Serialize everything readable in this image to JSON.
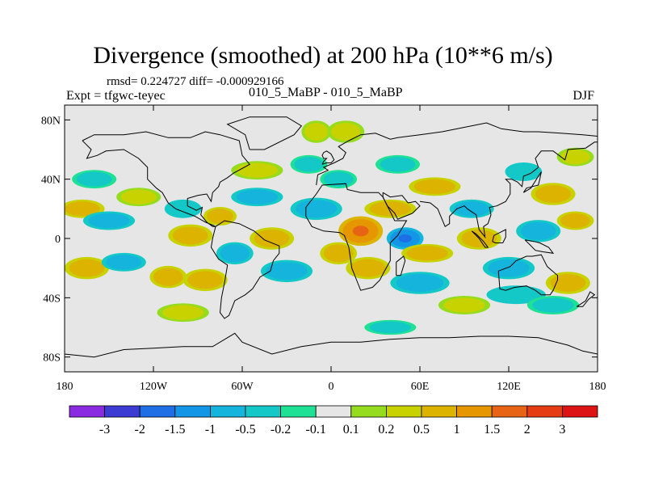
{
  "chart_data": {
    "type": "heatmap",
    "title": "Divergence (smoothed) at 200 hPa (10**6 m/s)",
    "stats_line": "rmsd= 0.224727 diff= -0.000929166",
    "expt_label": "Expt = tfgwc-teyec",
    "runs_label": "010_5_MaBP - 010_5_MaBP",
    "season": "DJF",
    "x_ticks": [
      "180",
      "120W",
      "60W",
      "0",
      "60E",
      "120E",
      "180"
    ],
    "x_tick_values": [
      -180,
      -120,
      -60,
      0,
      60,
      120,
      180
    ],
    "y_ticks": [
      "80N",
      "40N",
      "0",
      "40S",
      "80S"
    ],
    "y_tick_values": [
      80,
      40,
      0,
      -40,
      -80
    ],
    "xlim": [
      -180,
      180
    ],
    "ylim": [
      -90,
      90
    ],
    "colorbar_labels": [
      "-3",
      "-2",
      "-1.5",
      "-1",
      "-0.5",
      "-0.2",
      "-0.1",
      "0.1",
      "0.2",
      "0.5",
      "1",
      "1.5",
      "2",
      "3"
    ],
    "colorbar_levels": [
      -3,
      -2,
      -1.5,
      -1,
      -0.5,
      -0.2,
      -0.1,
      0.1,
      0.2,
      0.5,
      1,
      1.5,
      2,
      3
    ],
    "colorbar_colors": [
      "#8a2be2",
      "#3c3cd2",
      "#1e6ee6",
      "#1496e6",
      "#14b4dc",
      "#14c8c8",
      "#1ee196",
      "#e6e6e6",
      "#96dc1e",
      "#c8d200",
      "#dcb400",
      "#e69600",
      "#e66414",
      "#e63c14",
      "#dc1414"
    ],
    "field_blobs": [
      {
        "lon": -168,
        "lat": 20,
        "rlon": 12,
        "rlat": 5,
        "v": 0.6
      },
      {
        "lon": -150,
        "lat": 12,
        "rlon": 14,
        "rlat": 5,
        "v": -0.6
      },
      {
        "lon": -165,
        "lat": -20,
        "rlon": 12,
        "rlat": 6,
        "v": 0.7
      },
      {
        "lon": -140,
        "lat": -16,
        "rlon": 12,
        "rlat": 5,
        "v": -0.7
      },
      {
        "lon": -110,
        "lat": -26,
        "rlon": 10,
        "rlat": 6,
        "v": 0.8
      },
      {
        "lon": -130,
        "lat": 28,
        "rlon": 12,
        "rlat": 5,
        "v": 0.4
      },
      {
        "lon": -100,
        "lat": 20,
        "rlon": 10,
        "rlat": 5,
        "v": -0.5
      },
      {
        "lon": -75,
        "lat": 15,
        "rlon": 9,
        "rlat": 5,
        "v": 0.5
      },
      {
        "lon": -95,
        "lat": 2,
        "rlon": 12,
        "rlat": 6,
        "v": 0.7
      },
      {
        "lon": -65,
        "lat": -10,
        "rlon": 10,
        "rlat": 6,
        "v": -0.7
      },
      {
        "lon": -85,
        "lat": -28,
        "rlon": 12,
        "rlat": 6,
        "v": 0.8
      },
      {
        "lon": -50,
        "lat": 28,
        "rlon": 14,
        "rlat": 5,
        "v": -0.6
      },
      {
        "lon": -40,
        "lat": 0,
        "rlon": 12,
        "rlat": 6,
        "v": 0.6
      },
      {
        "lon": -30,
        "lat": -22,
        "rlon": 14,
        "rlat": 6,
        "v": -0.8
      },
      {
        "lon": -50,
        "lat": 46,
        "rlon": 14,
        "rlat": 5,
        "v": 0.3
      },
      {
        "lon": -15,
        "lat": 50,
        "rlon": 10,
        "rlat": 5,
        "v": -0.3
      },
      {
        "lon": -10,
        "lat": 72,
        "rlon": 8,
        "rlat": 6,
        "v": 0.4
      },
      {
        "lon": 10,
        "lat": 72,
        "rlon": 10,
        "rlat": 6,
        "v": 0.3
      },
      {
        "lon": 5,
        "lat": 40,
        "rlon": 10,
        "rlat": 5,
        "v": -0.4
      },
      {
        "lon": -10,
        "lat": 20,
        "rlon": 14,
        "rlat": 6,
        "v": -0.9
      },
      {
        "lon": 20,
        "lat": 5,
        "rlon": 12,
        "rlat": 8,
        "v": 1.2
      },
      {
        "lon": 5,
        "lat": -10,
        "rlon": 10,
        "rlat": 6,
        "v": 0.7
      },
      {
        "lon": 25,
        "lat": -20,
        "rlon": 12,
        "rlat": 6,
        "v": 0.8
      },
      {
        "lon": 40,
        "lat": 20,
        "rlon": 14,
        "rlat": 5,
        "v": 0.6
      },
      {
        "lon": 50,
        "lat": 0,
        "rlon": 10,
        "rlat": 6,
        "v": -1.2
      },
      {
        "lon": 65,
        "lat": -10,
        "rlon": 14,
        "rlat": 5,
        "v": 0.8
      },
      {
        "lon": 60,
        "lat": -30,
        "rlon": 16,
        "rlat": 6,
        "v": -0.6
      },
      {
        "lon": 45,
        "lat": 50,
        "rlon": 12,
        "rlat": 5,
        "v": -0.4
      },
      {
        "lon": 70,
        "lat": 35,
        "rlon": 14,
        "rlat": 5,
        "v": 0.7
      },
      {
        "lon": 95,
        "lat": 20,
        "rlon": 12,
        "rlat": 5,
        "v": -0.7
      },
      {
        "lon": 100,
        "lat": 0,
        "rlon": 12,
        "rlat": 6,
        "v": 0.9
      },
      {
        "lon": 120,
        "lat": -20,
        "rlon": 14,
        "rlat": 6,
        "v": -0.7
      },
      {
        "lon": 140,
        "lat": 5,
        "rlon": 12,
        "rlat": 6,
        "v": -0.9
      },
      {
        "lon": 150,
        "lat": 30,
        "rlon": 12,
        "rlat": 6,
        "v": 0.8
      },
      {
        "lon": 130,
        "lat": 45,
        "rlon": 10,
        "rlat": 5,
        "v": -0.5
      },
      {
        "lon": 165,
        "lat": 12,
        "rlon": 10,
        "rlat": 5,
        "v": 0.5
      },
      {
        "lon": 160,
        "lat": -30,
        "rlon": 12,
        "rlat": 6,
        "v": 0.7
      },
      {
        "lon": 125,
        "lat": -38,
        "rlon": 16,
        "rlat": 5,
        "v": -0.5
      },
      {
        "lon": 90,
        "lat": -45,
        "rlon": 14,
        "rlat": 5,
        "v": 0.4
      },
      {
        "lon": 150,
        "lat": -45,
        "rlon": 14,
        "rlat": 5,
        "v": -0.4
      },
      {
        "lon": -100,
        "lat": -50,
        "rlon": 14,
        "rlat": 5,
        "v": 0.4
      },
      {
        "lon": 40,
        "lat": -60,
        "rlon": 14,
        "rlat": 4,
        "v": -0.3
      },
      {
        "lon": 165,
        "lat": 55,
        "rlon": 10,
        "rlat": 5,
        "v": 0.4
      },
      {
        "lon": -160,
        "lat": 40,
        "rlon": 12,
        "rlat": 5,
        "v": -0.3
      }
    ]
  }
}
